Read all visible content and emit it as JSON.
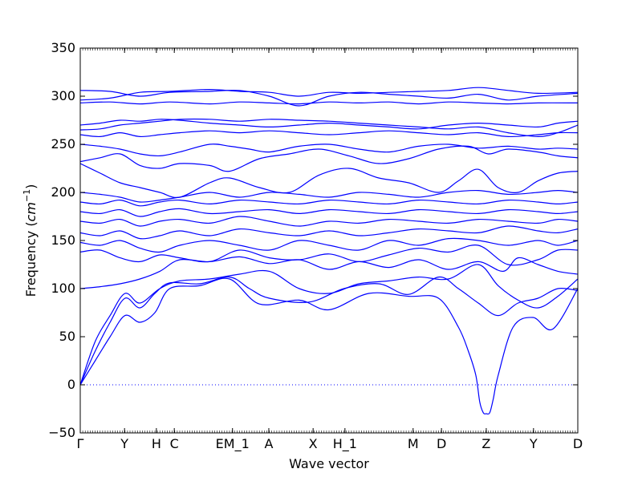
{
  "chart_data": {
    "type": "line",
    "xlabel": "Wave vector",
    "ylabel": "Frequency",
    "ylabel_unit": "cm",
    "ylabel_unit_exp": "−1",
    "ylim": [
      -50,
      350
    ],
    "yticks": [
      -50,
      0,
      50,
      100,
      150,
      200,
      250,
      300,
      350
    ],
    "x_path": {
      "range": [
        0,
        100
      ],
      "points": [
        {
          "label": "Γ",
          "x": 0
        },
        {
          "label": "Y",
          "x": 8.9
        },
        {
          "label": "H",
          "x": 15.3
        },
        {
          "label": "C",
          "x": 18.9
        },
        {
          "label": "EM_1",
          "x": 30.6
        },
        {
          "label": "A",
          "x": 37.9
        },
        {
          "label": "X",
          "x": 46.8
        },
        {
          "label": "H_1",
          "x": 53.2
        },
        {
          "label": "M",
          "x": 66.9
        },
        {
          "label": "D",
          "x": 72.6
        },
        {
          "label": "Z",
          "x": 81.6
        },
        {
          "label": "Y",
          "x": 91.1
        },
        {
          "label": "D",
          "x": 100
        }
      ]
    },
    "zero_line": true,
    "color": "#0000ff",
    "series": [
      {
        "x": [
          0,
          3,
          6,
          9,
          12,
          15,
          18,
          24,
          30,
          36,
          44,
          50,
          58,
          66,
          72,
          76,
          78,
          79.5,
          80.3,
          81,
          81.6,
          82.3,
          83,
          84,
          87,
          91,
          95,
          100
        ],
        "y": [
          0,
          25,
          50,
          72,
          65,
          75,
          100,
          103,
          110,
          84,
          88,
          78,
          95,
          92,
          90,
          60,
          35,
          10,
          -18,
          -29,
          -30,
          -29,
          -15,
          10,
          60,
          70,
          58,
          100
        ]
      },
      {
        "x": [
          0,
          3,
          6,
          9,
          12,
          15,
          18,
          24,
          30,
          34,
          38,
          46,
          53,
          60,
          66,
          72,
          76,
          80,
          84,
          88,
          92,
          96,
          100
        ],
        "y": [
          0,
          35,
          65,
          90,
          80,
          95,
          106,
          105,
          112,
          100,
          90,
          86,
          100,
          105,
          94,
          112,
          100,
          85,
          72,
          85,
          90,
          100,
          98
        ]
      },
      {
        "x": [
          0,
          3,
          6,
          9,
          12,
          16,
          20,
          26,
          32,
          38,
          44,
          50,
          56,
          62,
          68,
          74,
          80,
          84,
          88,
          92,
          96,
          100
        ],
        "y": [
          0,
          45,
          72,
          95,
          85,
          100,
          108,
          110,
          115,
          118,
          100,
          95,
          105,
          108,
          112,
          110,
          125,
          103,
          88,
          80,
          92,
          110
        ]
      },
      {
        "x": [
          0,
          4,
          8,
          12,
          16,
          20,
          26,
          32,
          38,
          44,
          50,
          56,
          62,
          68,
          74,
          80,
          85,
          88,
          92,
          96,
          100
        ],
        "y": [
          100,
          102,
          105,
          110,
          118,
          130,
          128,
          133,
          126,
          130,
          120,
          128,
          122,
          130,
          120,
          128,
          118,
          132,
          125,
          118,
          115
        ]
      },
      {
        "x": [
          0,
          4,
          8,
          12,
          16,
          20,
          26,
          32,
          38,
          44,
          50,
          56,
          62,
          68,
          74,
          80,
          86,
          92,
          96,
          100
        ],
        "y": [
          138,
          140,
          132,
          128,
          135,
          132,
          128,
          140,
          132,
          130,
          136,
          128,
          135,
          142,
          138,
          145,
          125,
          130,
          140,
          140
        ]
      },
      {
        "x": [
          0,
          4,
          8,
          12,
          16,
          20,
          26,
          32,
          38,
          44,
          50,
          56,
          62,
          68,
          74,
          80,
          86,
          92,
          96,
          100
        ],
        "y": [
          148,
          145,
          150,
          142,
          138,
          145,
          150,
          145,
          140,
          150,
          145,
          140,
          150,
          145,
          152,
          150,
          145,
          150,
          145,
          150
        ]
      },
      {
        "x": [
          0,
          4,
          8,
          12,
          16,
          20,
          26,
          32,
          38,
          44,
          50,
          56,
          62,
          68,
          74,
          80,
          86,
          92,
          96,
          100
        ],
        "y": [
          158,
          155,
          160,
          152,
          155,
          160,
          155,
          162,
          158,
          155,
          160,
          155,
          158,
          162,
          160,
          158,
          165,
          160,
          158,
          162
        ]
      },
      {
        "x": [
          0,
          4,
          8,
          12,
          16,
          20,
          26,
          32,
          38,
          44,
          50,
          56,
          62,
          68,
          74,
          80,
          86,
          92,
          96,
          100
        ],
        "y": [
          170,
          168,
          172,
          165,
          170,
          172,
          168,
          175,
          170,
          165,
          170,
          168,
          172,
          170,
          168,
          172,
          170,
          168,
          172,
          170
        ]
      },
      {
        "x": [
          0,
          4,
          8,
          12,
          16,
          20,
          26,
          32,
          38,
          44,
          50,
          56,
          62,
          68,
          74,
          80,
          86,
          92,
          96,
          100
        ],
        "y": [
          180,
          178,
          182,
          175,
          180,
          183,
          178,
          180,
          182,
          178,
          182,
          180,
          178,
          182,
          180,
          178,
          182,
          180,
          178,
          180
        ]
      },
      {
        "x": [
          0,
          4,
          8,
          12,
          16,
          20,
          26,
          32,
          38,
          44,
          50,
          56,
          62,
          68,
          74,
          80,
          86,
          92,
          96,
          100
        ],
        "y": [
          190,
          188,
          192,
          186,
          190,
          192,
          188,
          192,
          190,
          188,
          192,
          190,
          188,
          192,
          190,
          188,
          192,
          190,
          188,
          190
        ]
      },
      {
        "x": [
          0,
          4,
          8,
          12,
          16,
          20,
          26,
          32,
          38,
          44,
          50,
          56,
          62,
          68,
          74,
          80,
          86,
          92,
          96,
          100
        ],
        "y": [
          200,
          198,
          195,
          190,
          192,
          195,
          200,
          195,
          200,
          198,
          195,
          200,
          198,
          195,
          200,
          202,
          198,
          200,
          202,
          200
        ]
      },
      {
        "x": [
          0,
          4,
          8,
          12,
          16,
          20,
          26,
          30,
          36,
          42,
          48,
          54,
          60,
          66,
          72,
          76,
          80,
          84,
          88,
          92,
          96,
          100
        ],
        "y": [
          230,
          220,
          210,
          205,
          200,
          195,
          210,
          215,
          205,
          200,
          218,
          225,
          215,
          210,
          200,
          212,
          224,
          205,
          200,
          212,
          220,
          222
        ]
      },
      {
        "x": [
          0,
          4,
          8,
          12,
          16,
          20,
          26,
          30,
          36,
          42,
          48,
          54,
          60,
          66,
          72,
          78,
          82,
          86,
          92,
          96,
          100
        ],
        "y": [
          232,
          236,
          240,
          228,
          225,
          230,
          228,
          222,
          235,
          240,
          245,
          238,
          230,
          235,
          245,
          248,
          240,
          245,
          242,
          238,
          236
        ]
      },
      {
        "x": [
          0,
          4,
          8,
          12,
          16,
          20,
          26,
          30,
          34,
          38,
          44,
          50,
          56,
          62,
          68,
          74,
          80,
          86,
          92,
          96,
          100
        ],
        "y": [
          250,
          248,
          245,
          240,
          238,
          242,
          250,
          248,
          245,
          242,
          248,
          250,
          245,
          242,
          248,
          250,
          246,
          248,
          245,
          246,
          245
        ]
      },
      {
        "x": [
          0,
          4,
          8,
          12,
          16,
          20,
          26,
          32,
          38,
          44,
          50,
          56,
          62,
          68,
          74,
          80,
          86,
          92,
          96,
          100
        ],
        "y": [
          260,
          258,
          262,
          258,
          260,
          262,
          264,
          262,
          264,
          262,
          260,
          262,
          264,
          262,
          260,
          262,
          258,
          260,
          262,
          262
        ]
      },
      {
        "x": [
          0,
          4,
          8,
          12,
          16,
          20,
          26,
          32,
          38,
          44,
          50,
          56,
          62,
          68,
          74,
          80,
          86,
          92,
          96,
          100
        ],
        "y": [
          265,
          266,
          270,
          272,
          274,
          276,
          276,
          274,
          276,
          275,
          274,
          272,
          270,
          268,
          266,
          268,
          262,
          258,
          262,
          270
        ]
      },
      {
        "x": [
          0,
          4,
          8,
          12,
          16,
          20,
          26,
          32,
          38,
          44,
          50,
          56,
          62,
          68,
          74,
          80,
          86,
          92,
          96,
          100
        ],
        "y": [
          270,
          272,
          275,
          274,
          276,
          275,
          272,
          270,
          268,
          270,
          272,
          270,
          268,
          266,
          270,
          272,
          270,
          268,
          272,
          274
        ]
      },
      {
        "x": [
          0,
          6,
          12,
          18,
          26,
          32,
          38,
          44,
          50,
          56,
          62,
          68,
          74,
          80,
          86,
          92,
          100
        ],
        "y": [
          293,
          294,
          292,
          294,
          292,
          294,
          293,
          292,
          294,
          293,
          294,
          292,
          294,
          293,
          292,
          293,
          293
        ]
      },
      {
        "x": [
          0,
          6,
          12,
          18,
          26,
          32,
          38,
          44,
          50,
          56,
          62,
          68,
          74,
          80,
          86,
          92,
          100
        ],
        "y": [
          306,
          305,
          300,
          304,
          305,
          306,
          300,
          290,
          300,
          304,
          302,
          300,
          298,
          302,
          296,
          300,
          303
        ]
      },
      {
        "x": [
          0,
          6,
          12,
          18,
          26,
          32,
          38,
          44,
          50,
          56,
          62,
          68,
          74,
          80,
          86,
          92,
          100
        ],
        "y": [
          296,
          298,
          304,
          305,
          307,
          305,
          304,
          300,
          304,
          303,
          304,
          305,
          306,
          309,
          306,
          303,
          304
        ]
      }
    ]
  }
}
